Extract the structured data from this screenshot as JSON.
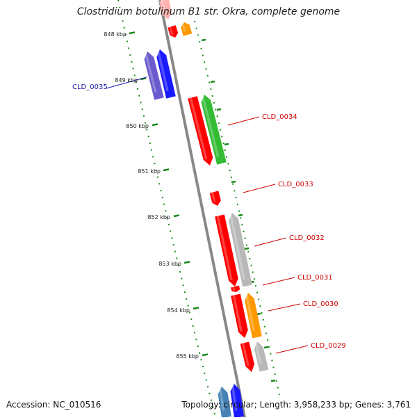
{
  "title": "Clostridium botulinum B1 str. Okra, complete genome",
  "footer": {
    "accession": "Accession: NC_010516",
    "summary": "Topology: circular; Length: 3,958,233 bp; Genes: 3,761"
  },
  "ruler": {
    "labels": [
      "848 kbp",
      "849 kbp",
      "850 kbp",
      "851 kbp",
      "852 kbp",
      "853 kbp",
      "854 kbp",
      "855 kbp"
    ],
    "tick_color": "#1a8a1a"
  },
  "genes": [
    {
      "id": "CLD_0035",
      "color": "#1a1aaa"
    },
    {
      "id": "CLD_0034",
      "color": "#cc0000"
    },
    {
      "id": "CLD_0033",
      "color": "#cc0000"
    },
    {
      "id": "CLD_0032",
      "color": "#cc0000"
    },
    {
      "id": "CLD_0031",
      "color": "#cc0000"
    },
    {
      "id": "CLD_0030",
      "color": "#cc0000"
    },
    {
      "id": "CLD_0029",
      "color": "#cc0000"
    }
  ],
  "feature_colors": {
    "red": "#ff0000",
    "green": "#33bb33",
    "blue": "#1a1aff",
    "purple": "#6a5acd",
    "orange": "#ff9900",
    "gray": "#b8b8b8",
    "steel_blue": "#4682b4",
    "backbone": "#888888"
  }
}
